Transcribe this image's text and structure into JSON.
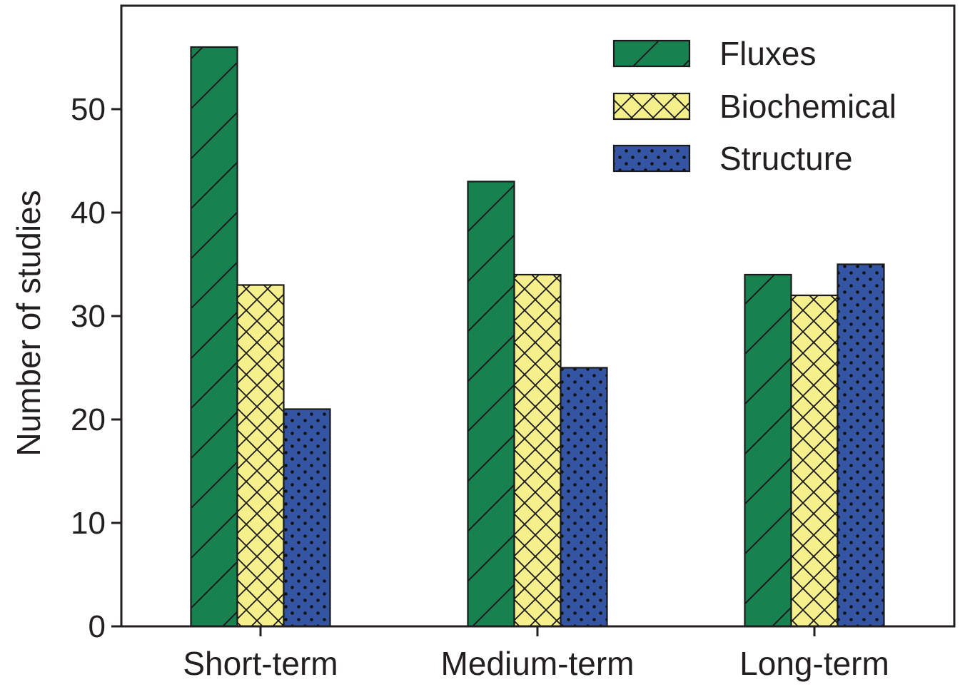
{
  "chart_data": {
    "type": "bar",
    "title": "",
    "xlabel": "",
    "ylabel": "Number of studies",
    "categories": [
      "Short-term",
      "Medium-term",
      "Long-term"
    ],
    "series": [
      {
        "name": "Fluxes",
        "values": [
          56,
          43,
          34
        ],
        "color": "#178150",
        "pattern": "diagonal-hatch"
      },
      {
        "name": "Biochemical",
        "values": [
          33,
          34,
          32
        ],
        "color": "#f5f08c",
        "pattern": "cross-hatch"
      },
      {
        "name": "Structure",
        "values": [
          21,
          25,
          35
        ],
        "color": "#3454a4",
        "pattern": "dots"
      }
    ],
    "ylim": [
      0,
      60
    ],
    "yticks": [
      0,
      10,
      20,
      30,
      40,
      50
    ],
    "grid": false,
    "legend_position": "top-right"
  }
}
